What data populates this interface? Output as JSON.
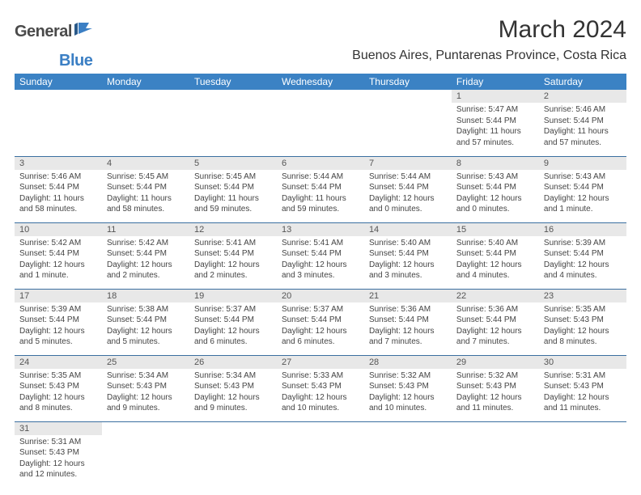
{
  "logo": {
    "general": "General",
    "blue": "Blue"
  },
  "title": "March 2024",
  "location": "Buenos Aires, Puntarenas Province, Costa Rica",
  "colors": {
    "header_bg": "#3b82c4",
    "header_text": "#ffffff",
    "day_number_bg": "#e8e8e8",
    "row_border": "#3b6fa0",
    "text": "#333333",
    "logo_blue": "#3b7fc4"
  },
  "weekdays": [
    "Sunday",
    "Monday",
    "Tuesday",
    "Wednesday",
    "Thursday",
    "Friday",
    "Saturday"
  ],
  "first_weekday_index": 5,
  "days": [
    {
      "n": 1,
      "sunrise": "5:47 AM",
      "sunset": "5:44 PM",
      "daylight": "11 hours and 57 minutes."
    },
    {
      "n": 2,
      "sunrise": "5:46 AM",
      "sunset": "5:44 PM",
      "daylight": "11 hours and 57 minutes."
    },
    {
      "n": 3,
      "sunrise": "5:46 AM",
      "sunset": "5:44 PM",
      "daylight": "11 hours and 58 minutes."
    },
    {
      "n": 4,
      "sunrise": "5:45 AM",
      "sunset": "5:44 PM",
      "daylight": "11 hours and 58 minutes."
    },
    {
      "n": 5,
      "sunrise": "5:45 AM",
      "sunset": "5:44 PM",
      "daylight": "11 hours and 59 minutes."
    },
    {
      "n": 6,
      "sunrise": "5:44 AM",
      "sunset": "5:44 PM",
      "daylight": "11 hours and 59 minutes."
    },
    {
      "n": 7,
      "sunrise": "5:44 AM",
      "sunset": "5:44 PM",
      "daylight": "12 hours and 0 minutes."
    },
    {
      "n": 8,
      "sunrise": "5:43 AM",
      "sunset": "5:44 PM",
      "daylight": "12 hours and 0 minutes."
    },
    {
      "n": 9,
      "sunrise": "5:43 AM",
      "sunset": "5:44 PM",
      "daylight": "12 hours and 1 minute."
    },
    {
      "n": 10,
      "sunrise": "5:42 AM",
      "sunset": "5:44 PM",
      "daylight": "12 hours and 1 minute."
    },
    {
      "n": 11,
      "sunrise": "5:42 AM",
      "sunset": "5:44 PM",
      "daylight": "12 hours and 2 minutes."
    },
    {
      "n": 12,
      "sunrise": "5:41 AM",
      "sunset": "5:44 PM",
      "daylight": "12 hours and 2 minutes."
    },
    {
      "n": 13,
      "sunrise": "5:41 AM",
      "sunset": "5:44 PM",
      "daylight": "12 hours and 3 minutes."
    },
    {
      "n": 14,
      "sunrise": "5:40 AM",
      "sunset": "5:44 PM",
      "daylight": "12 hours and 3 minutes."
    },
    {
      "n": 15,
      "sunrise": "5:40 AM",
      "sunset": "5:44 PM",
      "daylight": "12 hours and 4 minutes."
    },
    {
      "n": 16,
      "sunrise": "5:39 AM",
      "sunset": "5:44 PM",
      "daylight": "12 hours and 4 minutes."
    },
    {
      "n": 17,
      "sunrise": "5:39 AM",
      "sunset": "5:44 PM",
      "daylight": "12 hours and 5 minutes."
    },
    {
      "n": 18,
      "sunrise": "5:38 AM",
      "sunset": "5:44 PM",
      "daylight": "12 hours and 5 minutes."
    },
    {
      "n": 19,
      "sunrise": "5:37 AM",
      "sunset": "5:44 PM",
      "daylight": "12 hours and 6 minutes."
    },
    {
      "n": 20,
      "sunrise": "5:37 AM",
      "sunset": "5:44 PM",
      "daylight": "12 hours and 6 minutes."
    },
    {
      "n": 21,
      "sunrise": "5:36 AM",
      "sunset": "5:44 PM",
      "daylight": "12 hours and 7 minutes."
    },
    {
      "n": 22,
      "sunrise": "5:36 AM",
      "sunset": "5:44 PM",
      "daylight": "12 hours and 7 minutes."
    },
    {
      "n": 23,
      "sunrise": "5:35 AM",
      "sunset": "5:43 PM",
      "daylight": "12 hours and 8 minutes."
    },
    {
      "n": 24,
      "sunrise": "5:35 AM",
      "sunset": "5:43 PM",
      "daylight": "12 hours and 8 minutes."
    },
    {
      "n": 25,
      "sunrise": "5:34 AM",
      "sunset": "5:43 PM",
      "daylight": "12 hours and 9 minutes."
    },
    {
      "n": 26,
      "sunrise": "5:34 AM",
      "sunset": "5:43 PM",
      "daylight": "12 hours and 9 minutes."
    },
    {
      "n": 27,
      "sunrise": "5:33 AM",
      "sunset": "5:43 PM",
      "daylight": "12 hours and 10 minutes."
    },
    {
      "n": 28,
      "sunrise": "5:32 AM",
      "sunset": "5:43 PM",
      "daylight": "12 hours and 10 minutes."
    },
    {
      "n": 29,
      "sunrise": "5:32 AM",
      "sunset": "5:43 PM",
      "daylight": "12 hours and 11 minutes."
    },
    {
      "n": 30,
      "sunrise": "5:31 AM",
      "sunset": "5:43 PM",
      "daylight": "12 hours and 11 minutes."
    },
    {
      "n": 31,
      "sunrise": "5:31 AM",
      "sunset": "5:43 PM",
      "daylight": "12 hours and 12 minutes."
    }
  ],
  "labels": {
    "sunrise": "Sunrise:",
    "sunset": "Sunset:",
    "daylight": "Daylight:"
  }
}
